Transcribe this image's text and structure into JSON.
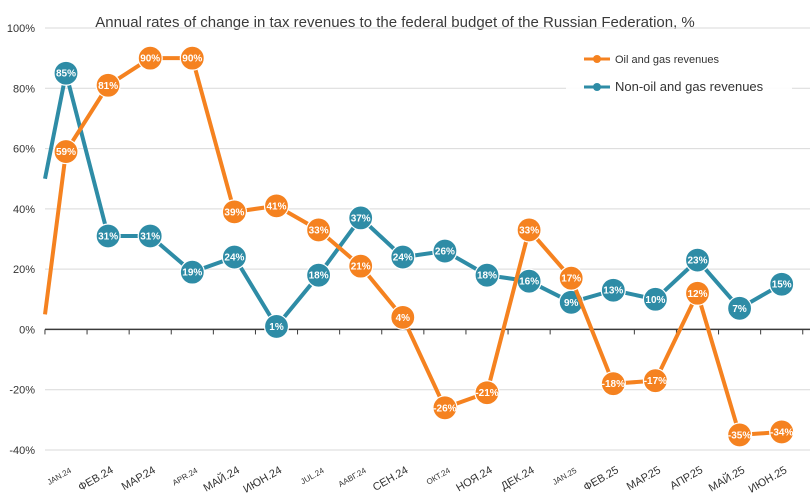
{
  "chart_data": {
    "type": "line",
    "title": "Annual rates of change in tax revenues to the federal budget of the Russian Federation, %",
    "categories": [
      "JAN.24",
      "ФЕВ.24",
      "МАР.24",
      "APR.24",
      "МАЙ.24",
      "ИЮН.24",
      "JUL.24",
      "ААВГ.24",
      "СЕН.24",
      "ОКТ.24",
      "НОЯ.24",
      "ДЕК.24",
      "JAN.25",
      "ФЕВ.25",
      "МАР.25",
      "АПР.25",
      "МАЙ.25",
      "ИЮН.25"
    ],
    "ylim": [
      -40,
      100
    ],
    "yticks": [
      -40,
      -20,
      0,
      20,
      40,
      60,
      80,
      100
    ],
    "ytick_labels": [
      "-40%",
      "-20%",
      "0%",
      "20%",
      "40%",
      "60%",
      "80%",
      "100%"
    ],
    "grid": "horizontal",
    "legend_position": "top-right",
    "series": [
      {
        "name": "Oil and gas revenues",
        "color": "#F58220",
        "entry": 5,
        "values": [
          59,
          81,
          90,
          90,
          39,
          41,
          33,
          21,
          4,
          -26,
          -21,
          33,
          17,
          -18,
          -17,
          12,
          -35,
          -34
        ],
        "labels": [
          "59%",
          "81%",
          "90%",
          "90%",
          "39%",
          "41%",
          "33%",
          "21%",
          "4%",
          "-26%",
          "-21%",
          "33%",
          "17%",
          "-18%",
          "-17%",
          "12%",
          "-35%",
          "-34%"
        ]
      },
      {
        "name": "Non-oil and gas revenues",
        "color": "#2E8CA6",
        "entry": 50,
        "values": [
          85,
          31,
          31,
          19,
          24,
          1,
          18,
          37,
          24,
          26,
          18,
          16,
          9,
          13,
          10,
          23,
          7,
          15
        ],
        "labels": [
          "85%",
          "31%",
          "31%",
          "19%",
          "24%",
          "1%",
          "18%",
          "37%",
          "24%",
          "26%",
          "18%",
          "16%",
          "9%",
          "13%",
          "10%",
          "23%",
          "7%",
          "15%"
        ]
      }
    ]
  }
}
